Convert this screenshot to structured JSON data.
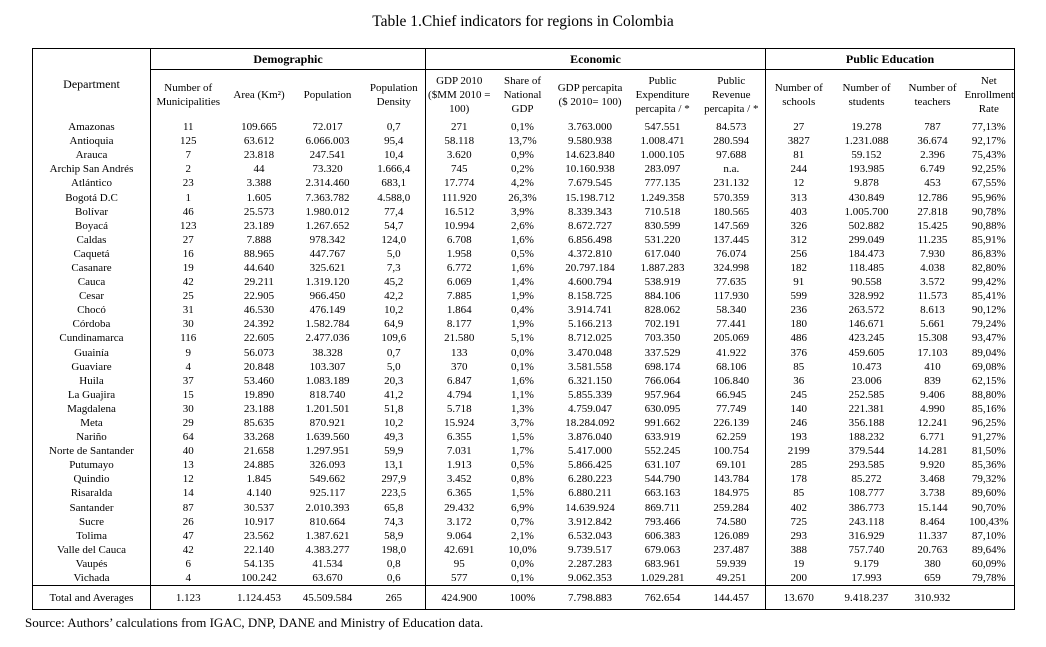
{
  "title": "Table 1.Chief indicators for regions in Colombia",
  "source": "Source: Authors’ calculations from IGAC, DNP, DANE and Ministry of Education data.",
  "table": {
    "department_header": "Department",
    "groups": [
      {
        "label": "Demographic",
        "span": 4
      },
      {
        "label": "Economic",
        "span": 5
      },
      {
        "label": "Public Education",
        "span": 4
      }
    ],
    "columns": [
      "Number of Municipalities",
      "Area (Km²)",
      "Population",
      "Population Density",
      "GDP 2010 ($MM 2010 = 100)",
      "Share of National GDP",
      "GDP percapita ($ 2010= 100)",
      "Public Expenditure percapita / *",
      "Public Revenue percapita / *",
      "Number of schools",
      "Number of students",
      "Number of teachers",
      "Net Enrollment Rate"
    ],
    "rows": [
      {
        "department": "Amazonas",
        "values": [
          "11",
          "109.665",
          "72.017",
          "0,7",
          "271",
          "0,1%",
          "3.763.000",
          "547.551",
          "84.573",
          "27",
          "19.278",
          "787",
          "77,13%"
        ]
      },
      {
        "department": "Antioquia",
        "values": [
          "125",
          "63.612",
          "6.066.003",
          "95,4",
          "58.118",
          "13,7%",
          "9.580.938",
          "1.008.471",
          "280.594",
          "3827",
          "1.231.088",
          "36.674",
          "92,17%"
        ]
      },
      {
        "department": "Arauca",
        "values": [
          "7",
          "23.818",
          "247.541",
          "10,4",
          "3.620",
          "0,9%",
          "14.623.840",
          "1.000.105",
          "97.688",
          "81",
          "59.152",
          "2.396",
          "75,43%"
        ]
      },
      {
        "department": "Archip San Andrés",
        "values": [
          "2",
          "44",
          "73.320",
          "1.666,4",
          "745",
          "0,2%",
          "10.160.938",
          "283.097",
          "n.a.",
          "244",
          "193.985",
          "6.749",
          "92,25%"
        ]
      },
      {
        "department": "Atlántico",
        "values": [
          "23",
          "3.388",
          "2.314.460",
          "683,1",
          "17.774",
          "4,2%",
          "7.679.545",
          "777.135",
          "231.132",
          "12",
          "9.878",
          "453",
          "67,55%"
        ]
      },
      {
        "department": "Bogotá D.C",
        "values": [
          "1",
          "1.605",
          "7.363.782",
          "4.588,0",
          "111.920",
          "26,3%",
          "15.198.712",
          "1.249.358",
          "570.359",
          "313",
          "430.849",
          "12.786",
          "95,96%"
        ]
      },
      {
        "department": "Bolívar",
        "values": [
          "46",
          "25.573",
          "1.980.012",
          "77,4",
          "16.512",
          "3,9%",
          "8.339.343",
          "710.518",
          "180.565",
          "403",
          "1.005.700",
          "27.818",
          "90,78%"
        ]
      },
      {
        "department": "Boyacá",
        "values": [
          "123",
          "23.189",
          "1.267.652",
          "54,7",
          "10.994",
          "2,6%",
          "8.672.727",
          "830.599",
          "147.569",
          "326",
          "502.882",
          "15.425",
          "90,88%"
        ]
      },
      {
        "department": "Caldas",
        "values": [
          "27",
          "7.888",
          "978.342",
          "124,0",
          "6.708",
          "1,6%",
          "6.856.498",
          "531.220",
          "137.445",
          "312",
          "299.049",
          "11.235",
          "85,91%"
        ]
      },
      {
        "department": "Caquetá",
        "values": [
          "16",
          "88.965",
          "447.767",
          "5,0",
          "1.958",
          "0,5%",
          "4.372.810",
          "617.040",
          "76.074",
          "256",
          "184.473",
          "7.930",
          "86,83%"
        ]
      },
      {
        "department": "Casanare",
        "values": [
          "19",
          "44.640",
          "325.621",
          "7,3",
          "6.772",
          "1,6%",
          "20.797.184",
          "1.887.283",
          "324.998",
          "182",
          "118.485",
          "4.038",
          "82,80%"
        ]
      },
      {
        "department": "Cauca",
        "values": [
          "42",
          "29.211",
          "1.319.120",
          "45,2",
          "6.069",
          "1,4%",
          "4.600.794",
          "538.919",
          "77.635",
          "91",
          "90.558",
          "3.572",
          "99,42%"
        ]
      },
      {
        "department": "Cesar",
        "values": [
          "25",
          "22.905",
          "966.450",
          "42,2",
          "7.885",
          "1,9%",
          "8.158.725",
          "884.106",
          "117.930",
          "599",
          "328.992",
          "11.573",
          "85,41%"
        ]
      },
      {
        "department": "Chocó",
        "values": [
          "31",
          "46.530",
          "476.149",
          "10,2",
          "1.864",
          "0,4%",
          "3.914.741",
          "828.062",
          "58.340",
          "236",
          "263.572",
          "8.613",
          "90,12%"
        ]
      },
      {
        "department": "Córdoba",
        "values": [
          "30",
          "24.392",
          "1.582.784",
          "64,9",
          "8.177",
          "1,9%",
          "5.166.213",
          "702.191",
          "77.441",
          "180",
          "146.671",
          "5.661",
          "79,24%"
        ]
      },
      {
        "department": "Cundinamarca",
        "values": [
          "116",
          "22.605",
          "2.477.036",
          "109,6",
          "21.580",
          "5,1%",
          "8.712.025",
          "703.350",
          "205.069",
          "486",
          "423.245",
          "15.308",
          "93,47%"
        ]
      },
      {
        "department": "Guainía",
        "values": [
          "9",
          "56.073",
          "38.328",
          "0,7",
          "133",
          "0,0%",
          "3.470.048",
          "337.529",
          "41.922",
          "376",
          "459.605",
          "17.103",
          "89,04%"
        ]
      },
      {
        "department": "Guaviare",
        "values": [
          "4",
          "20.848",
          "103.307",
          "5,0",
          "370",
          "0,1%",
          "3.581.558",
          "698.174",
          "68.106",
          "85",
          "10.473",
          "410",
          "69,08%"
        ]
      },
      {
        "department": "Huila",
        "values": [
          "37",
          "53.460",
          "1.083.189",
          "20,3",
          "6.847",
          "1,6%",
          "6.321.150",
          "766.064",
          "106.840",
          "36",
          "23.006",
          "839",
          "62,15%"
        ]
      },
      {
        "department": "La Guajira",
        "values": [
          "15",
          "19.890",
          "818.740",
          "41,2",
          "4.794",
          "1,1%",
          "5.855.339",
          "957.964",
          "66.945",
          "245",
          "252.585",
          "9.406",
          "88,80%"
        ]
      },
      {
        "department": "Magdalena",
        "values": [
          "30",
          "23.188",
          "1.201.501",
          "51,8",
          "5.718",
          "1,3%",
          "4.759.047",
          "630.095",
          "77.749",
          "140",
          "221.381",
          "4.990",
          "85,16%"
        ]
      },
      {
        "department": "Meta",
        "values": [
          "29",
          "85.635",
          "870.921",
          "10,2",
          "15.924",
          "3,7%",
          "18.284.092",
          "991.662",
          "226.139",
          "246",
          "356.188",
          "12.241",
          "96,25%"
        ]
      },
      {
        "department": "Nariño",
        "values": [
          "64",
          "33.268",
          "1.639.560",
          "49,3",
          "6.355",
          "1,5%",
          "3.876.040",
          "633.919",
          "62.259",
          "193",
          "188.232",
          "6.771",
          "91,27%"
        ]
      },
      {
        "department": "Norte de Santander",
        "values": [
          "40",
          "21.658",
          "1.297.951",
          "59,9",
          "7.031",
          "1,7%",
          "5.417.000",
          "552.245",
          "100.754",
          "2199",
          "379.544",
          "14.281",
          "81,50%"
        ]
      },
      {
        "department": "Putumayo",
        "values": [
          "13",
          "24.885",
          "326.093",
          "13,1",
          "1.913",
          "0,5%",
          "5.866.425",
          "631.107",
          "69.101",
          "285",
          "293.585",
          "9.920",
          "85,36%"
        ]
      },
      {
        "department": "Quindio",
        "values": [
          "12",
          "1.845",
          "549.662",
          "297,9",
          "3.452",
          "0,8%",
          "6.280.223",
          "544.790",
          "143.784",
          "178",
          "85.272",
          "3.468",
          "79,32%"
        ]
      },
      {
        "department": "Risaralda",
        "values": [
          "14",
          "4.140",
          "925.117",
          "223,5",
          "6.365",
          "1,5%",
          "6.880.211",
          "663.163",
          "184.975",
          "85",
          "108.777",
          "3.738",
          "89,60%"
        ]
      },
      {
        "department": "Santander",
        "values": [
          "87",
          "30.537",
          "2.010.393",
          "65,8",
          "29.432",
          "6,9%",
          "14.639.924",
          "869.711",
          "259.284",
          "402",
          "386.773",
          "15.144",
          "90,70%"
        ]
      },
      {
        "department": "Sucre",
        "values": [
          "26",
          "10.917",
          "810.664",
          "74,3",
          "3.172",
          "0,7%",
          "3.912.842",
          "793.466",
          "74.580",
          "725",
          "243.118",
          "8.464",
          "100,43%"
        ]
      },
      {
        "department": "Tolima",
        "values": [
          "47",
          "23.562",
          "1.387.621",
          "58,9",
          "9.064",
          "2,1%",
          "6.532.043",
          "606.383",
          "126.089",
          "293",
          "316.929",
          "11.337",
          "87,10%"
        ]
      },
      {
        "department": "Valle del Cauca",
        "values": [
          "42",
          "22.140",
          "4.383.277",
          "198,0",
          "42.691",
          "10,0%",
          "9.739.517",
          "679.063",
          "237.487",
          "388",
          "757.740",
          "20.763",
          "89,64%"
        ]
      },
      {
        "department": "Vaupés",
        "values": [
          "6",
          "54.135",
          "41.534",
          "0,8",
          "95",
          "0,0%",
          "2.287.283",
          "683.961",
          "59.939",
          "19",
          "9.179",
          "380",
          "60,09%"
        ]
      },
      {
        "department": "Vichada",
        "values": [
          "4",
          "100.242",
          "63.670",
          "0,6",
          "577",
          "0,1%",
          "9.062.353",
          "1.029.281",
          "49.251",
          "200",
          "17.993",
          "659",
          "79,78%"
        ]
      }
    ],
    "total_row": {
      "department": "Total and Averages",
      "values": [
        "1.123",
        "1.124.453",
        "45.509.584",
        "265",
        "424.900",
        "100%",
        "7.798.883",
        "762.654",
        "144.457",
        "13.670",
        "9.418.237",
        "310.932",
        ""
      ]
    }
  }
}
